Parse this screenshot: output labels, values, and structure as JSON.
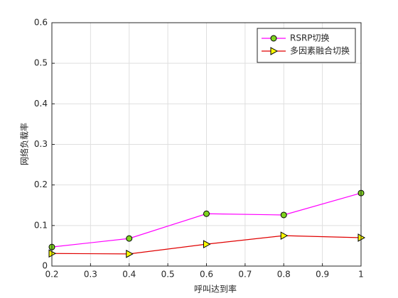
{
  "chart_data": {
    "type": "line",
    "xlabel": "呼叫达到率",
    "ylabel": "网络负载率",
    "x": [
      0.2,
      0.4,
      0.6,
      0.8,
      1
    ],
    "series": [
      {
        "name": "RSRP切换",
        "color": "#ff00ff",
        "marker": "circle",
        "marker_color": "#7fd320",
        "values": [
          0.047,
          0.068,
          0.129,
          0.126,
          0.18
        ]
      },
      {
        "name": "多因素融合切换",
        "color": "#e00000",
        "marker": "triangle-right",
        "marker_color": "#ffff00",
        "values": [
          0.031,
          0.03,
          0.054,
          0.075,
          0.07
        ]
      }
    ],
    "xlim": [
      0.2,
      1
    ],
    "xticks": [
      0.2,
      0.3,
      0.4,
      0.5,
      0.6,
      0.7,
      0.8,
      0.9,
      1
    ],
    "ylim": [
      0,
      0.6
    ],
    "yticks": [
      0,
      0.1,
      0.2,
      0.3,
      0.4,
      0.5,
      0.6
    ],
    "grid": true,
    "legend": "northeast"
  }
}
